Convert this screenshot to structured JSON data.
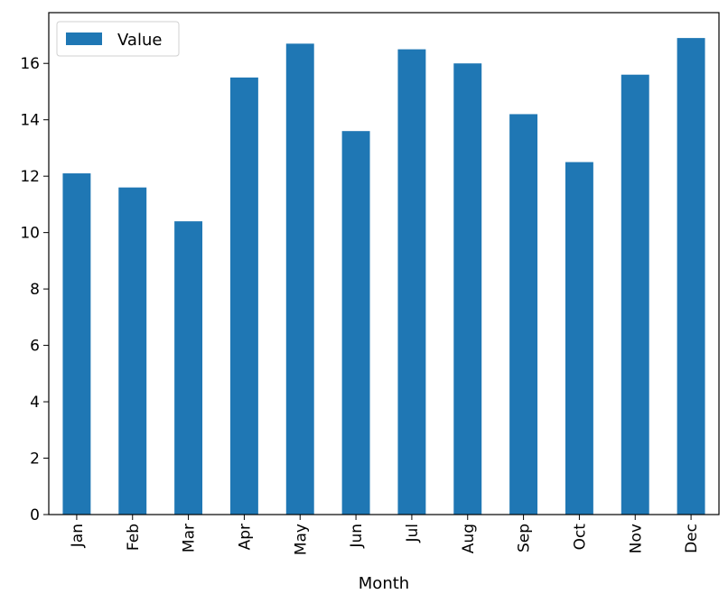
{
  "chart_data": {
    "type": "bar",
    "categories": [
      "Jan",
      "Feb",
      "Mar",
      "Apr",
      "May",
      "Jun",
      "Jul",
      "Aug",
      "Sep",
      "Oct",
      "Nov",
      "Dec"
    ],
    "series": [
      {
        "name": "Value",
        "values": [
          12.1,
          11.6,
          10.4,
          15.5,
          16.7,
          13.6,
          16.5,
          16.0,
          14.2,
          12.5,
          15.6,
          16.9
        ],
        "color": "#1f77b4"
      }
    ],
    "title": "",
    "xlabel": "Month",
    "ylabel": "",
    "ylim": [
      0,
      17.8
    ],
    "yticks": [
      0,
      2,
      4,
      6,
      8,
      10,
      12,
      14,
      16
    ],
    "grid": false,
    "legend_position": "top-left"
  }
}
